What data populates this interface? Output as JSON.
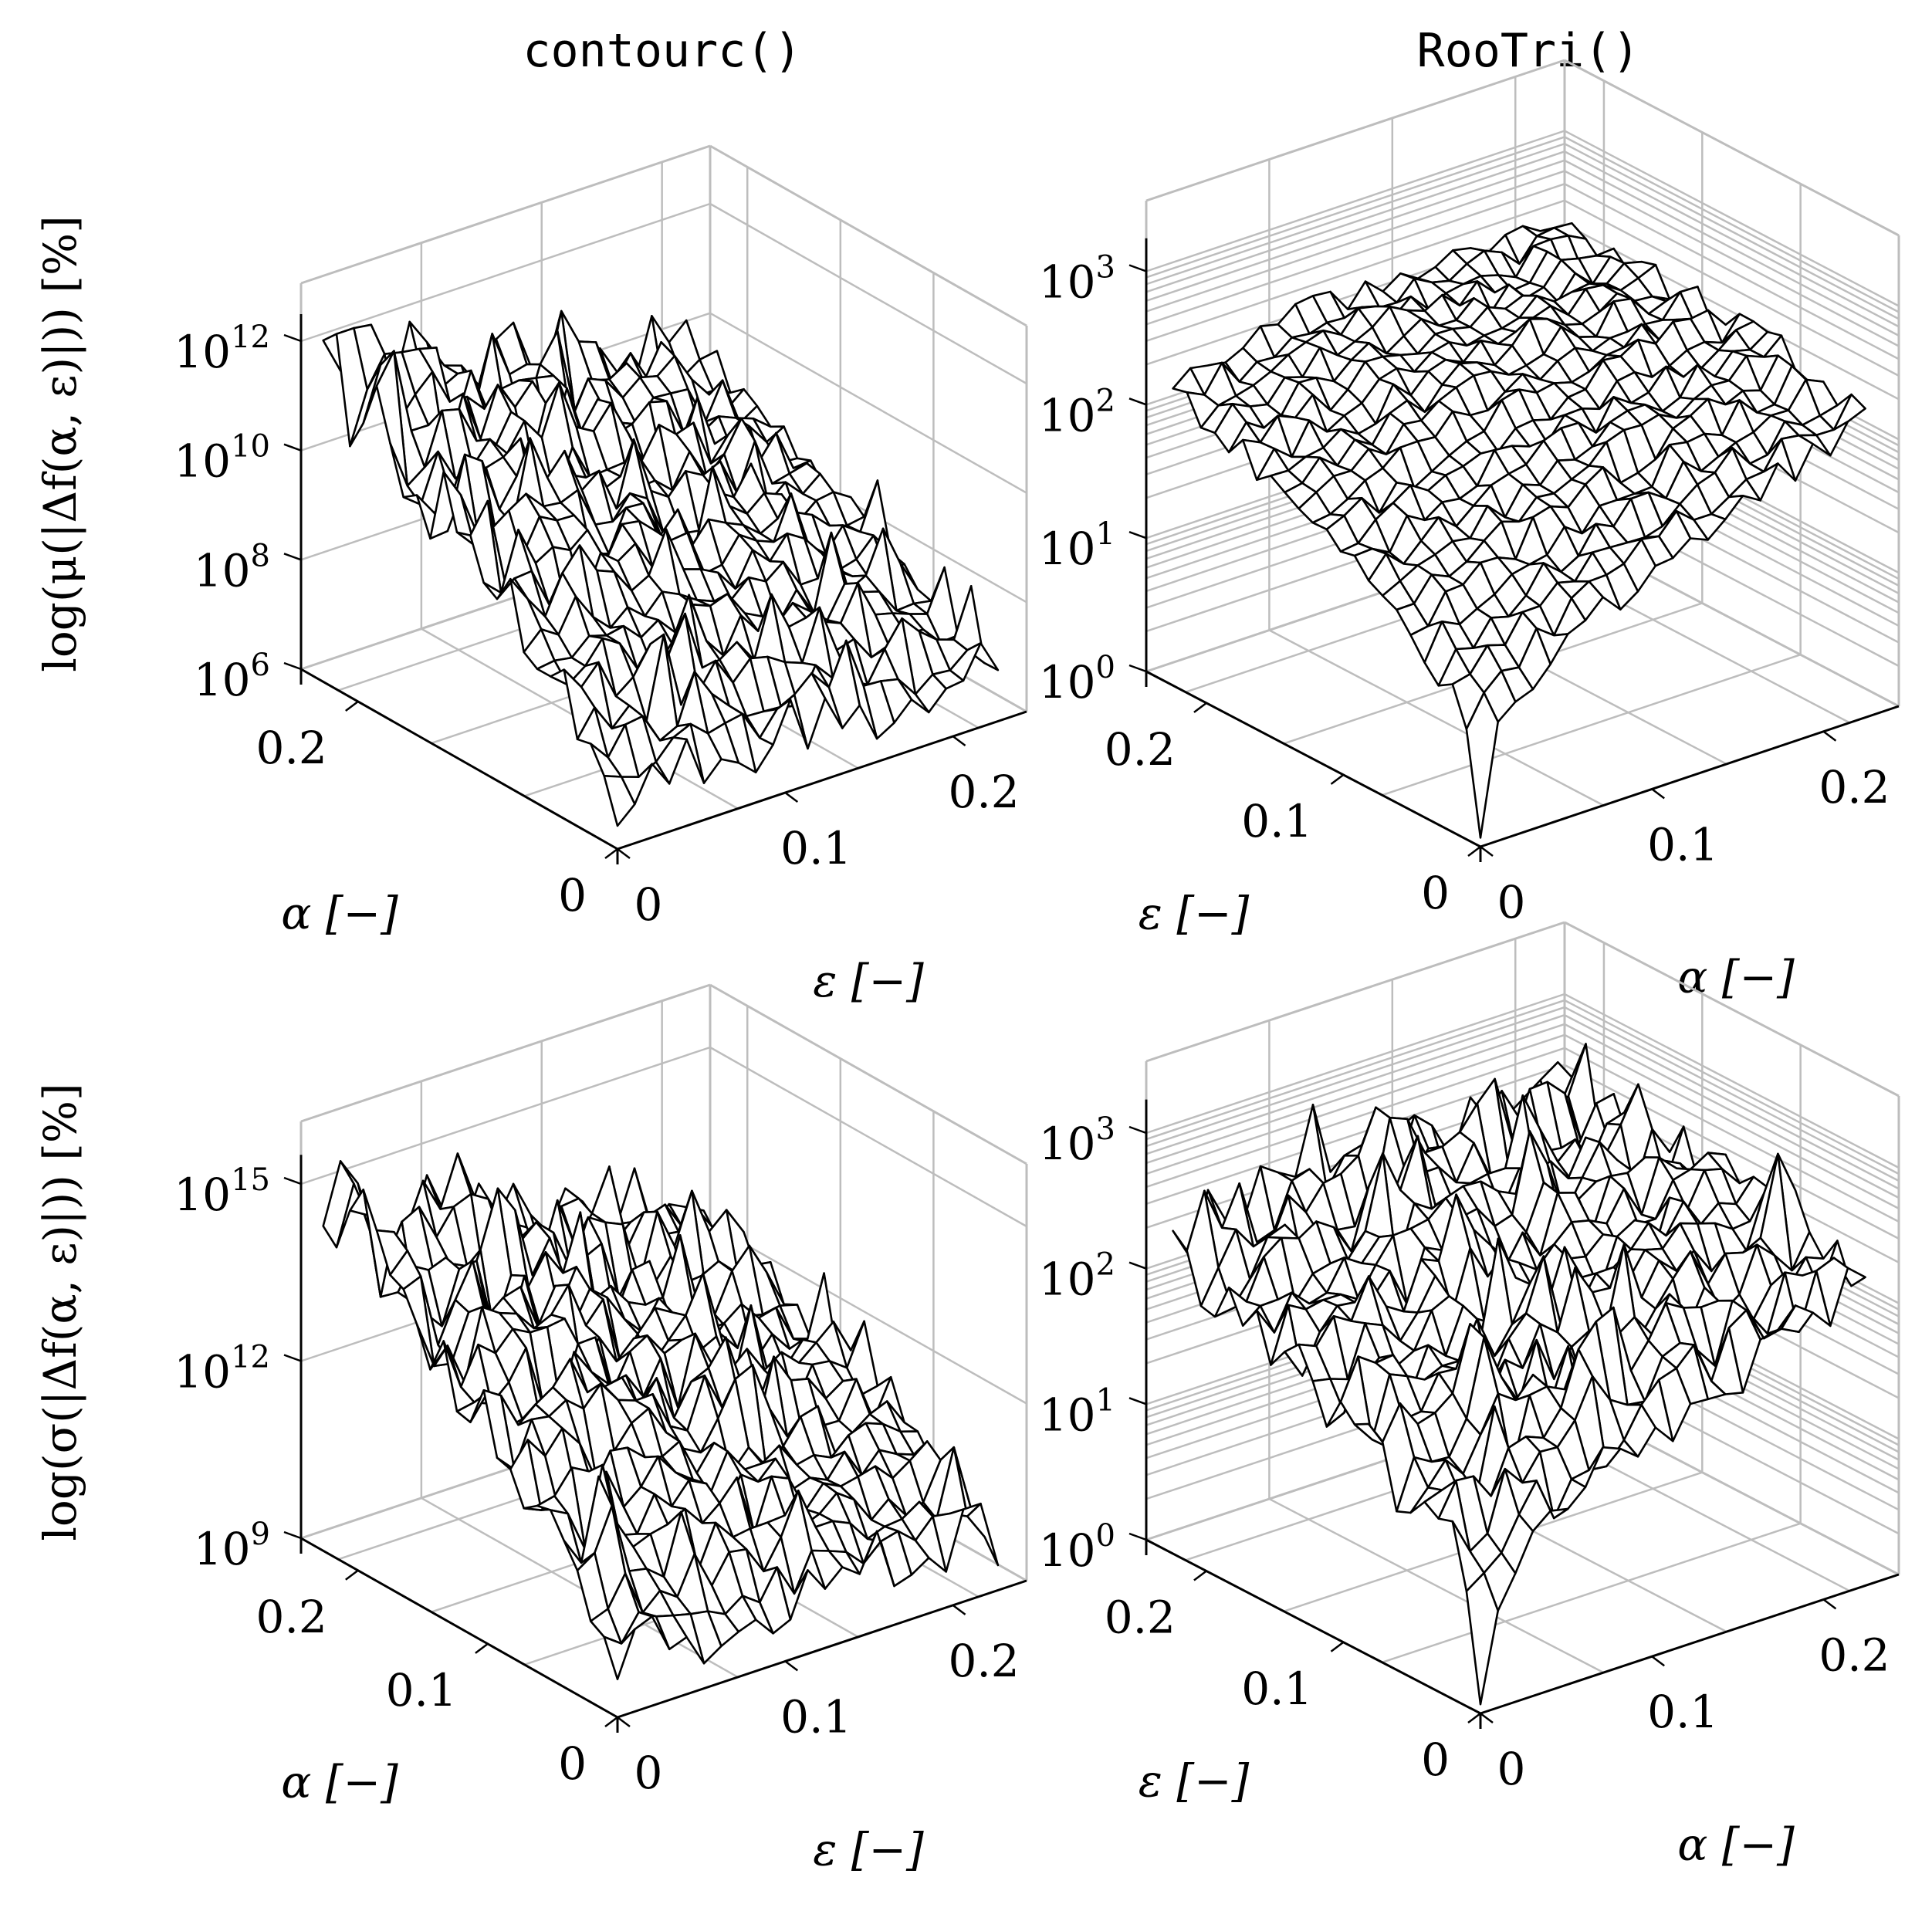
{
  "columns": [
    {
      "title": "contourc()"
    },
    {
      "title": "RooTri()"
    }
  ],
  "chart_data": [
    {
      "type": "surface",
      "method": "contourc()",
      "zlabel": "log(μ(|Δf(α, ε)|)) [%]",
      "xlabel": "α [−]",
      "ylabel": "ε [−]",
      "zscale": "log",
      "x_ticks": [
        "0",
        "0.2"
      ],
      "y_ticks": [
        "0",
        "0.1",
        "0.2"
      ],
      "z_ticks": [
        {
          "base": "10",
          "exp": "6"
        },
        {
          "base": "10",
          "exp": "8"
        },
        {
          "base": "10",
          "exp": "10"
        },
        {
          "base": "10",
          "exp": "12"
        }
      ],
      "zlim": [
        6,
        12
      ],
      "trend": "high (~1e11–1e12) at large α, decreasing to ~1e6 at small α and small ε; noisy ridges along ε",
      "grid": "on"
    },
    {
      "type": "surface",
      "method": "RooTri()",
      "zlabel": "",
      "xlabel": "α [−]",
      "ylabel": "ε [−]",
      "zscale": "log",
      "x_ticks": [
        "0",
        "0.1",
        "0.2"
      ],
      "y_ticks": [
        "0",
        "0.1",
        "0.2"
      ],
      "z_ticks": [
        {
          "base": "10",
          "exp": "0"
        },
        {
          "base": "10",
          "exp": "1"
        },
        {
          "base": "10",
          "exp": "2"
        },
        {
          "base": "10",
          "exp": "3"
        }
      ],
      "zlim": [
        0,
        3
      ],
      "trend": "minimum near α=0, ε=0 (~1e0), rising to ~1e2.5 at large α and ε",
      "grid": "on"
    },
    {
      "type": "surface",
      "method": "contourc()",
      "zlabel": "log(σ(|Δf(α, ε)|)) [%]",
      "xlabel": "α [−]",
      "ylabel": "ε [−]",
      "zscale": "log",
      "x_ticks": [
        "0",
        "0.1",
        "0.2"
      ],
      "y_ticks": [
        "0",
        "0.1",
        "0.2"
      ],
      "z_ticks": [
        {
          "base": "10",
          "exp": "9"
        },
        {
          "base": "10",
          "exp": "12"
        },
        {
          "base": "10",
          "exp": "15"
        }
      ],
      "zlim": [
        9,
        15
      ],
      "trend": "high (~1e14–1e15) at large α, decreasing toward ~1e9 at small α and small ε; noisy spikes",
      "grid": "on"
    },
    {
      "type": "surface",
      "method": "RooTri()",
      "zlabel": "",
      "xlabel": "α [−]",
      "ylabel": "ε [−]",
      "zscale": "log",
      "x_ticks": [
        "0",
        "0.1",
        "0.2"
      ],
      "y_ticks": [
        "0",
        "0.1",
        "0.2"
      ],
      "z_ticks": [
        {
          "base": "10",
          "exp": "0"
        },
        {
          "base": "10",
          "exp": "1"
        },
        {
          "base": "10",
          "exp": "2"
        },
        {
          "base": "10",
          "exp": "3"
        }
      ],
      "zlim": [
        0,
        3
      ],
      "trend": "minimum near α=0, ε=0 (~1e0), rising to ~1e3 at large α and ε with strong noise",
      "grid": "on"
    }
  ]
}
